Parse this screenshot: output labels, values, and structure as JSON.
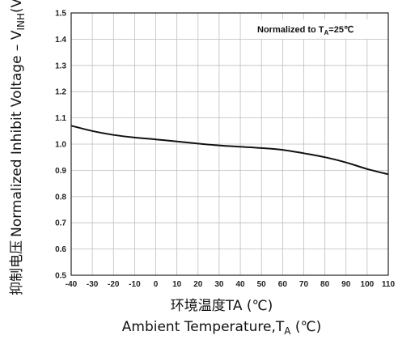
{
  "chart_data": {
    "type": "line",
    "title": "",
    "xlabel_cn": "环境温度TA (℃)",
    "xlabel_en": "Ambient Temperature,T",
    "xlabel_en_sub": "A",
    "xlabel_en_unit": " (℃)",
    "ylabel_cn": "抑制电压",
    "ylabel_en": "Normalized Inhibit Voltage – V",
    "ylabel_en_sub": "INH",
    "ylabel_en_unit": "(V)",
    "annotation_main": "Normalized to T",
    "annotation_sub": "A",
    "annotation_tail": "=25℃",
    "xlim": [
      -40,
      110
    ],
    "ylim": [
      0.5,
      1.5
    ],
    "xticks": [
      "-40",
      "-30",
      "-20",
      "-10",
      "0",
      "10",
      "20",
      "30",
      "40",
      "50",
      "60",
      "70",
      "80",
      "90",
      "100",
      "110"
    ],
    "yticks": [
      "0.5",
      "0.6",
      "0.7",
      "0.8",
      "0.9",
      "1.0",
      "1.1",
      "1.2",
      "1.3",
      "1.4",
      "1.5"
    ],
    "grid": true,
    "series": [
      {
        "x": [
          -40,
          -30,
          -20,
          -10,
          0,
          10,
          20,
          30,
          40,
          50,
          60,
          70,
          80,
          90,
          100,
          110
        ],
        "y": [
          1.07,
          1.05,
          1.035,
          1.025,
          1.018,
          1.01,
          1.002,
          0.995,
          0.99,
          0.985,
          0.978,
          0.965,
          0.95,
          0.93,
          0.905,
          0.885
        ],
        "color": "#111111"
      }
    ]
  }
}
